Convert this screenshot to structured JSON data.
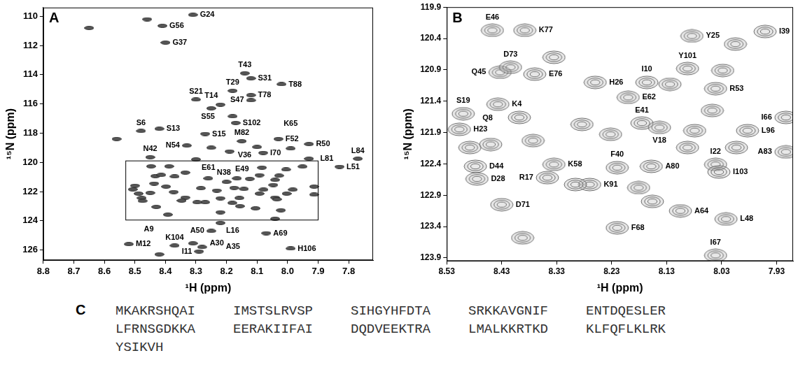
{
  "chart_data": [
    {
      "type": "scatter",
      "panel": "A",
      "x_label": "¹H (ppm)",
      "y_label": "¹⁵N (ppm)",
      "xlim": [
        8.8,
        7.72
      ],
      "ylim": [
        126.7,
        109.4
      ],
      "xticks": [
        8.8,
        8.7,
        8.6,
        8.5,
        8.4,
        8.3,
        8.2,
        8.1,
        {
          "value": 8,
          "label": "8.0"
        },
        7.9,
        7.8
      ],
      "yticks": [
        110,
        112,
        114,
        116,
        118,
        120,
        122,
        124,
        126
      ],
      "grid": false,
      "marker": "ellipse",
      "color": "#555555",
      "x": [
        8.31,
        8.65,
        8.46,
        8.41,
        8.4,
        8.14,
        8.12,
        8.02,
        8.18,
        8.12,
        8.12,
        8.3,
        8.22,
        8.25,
        8.18,
        8.17,
        8.56,
        8.48,
        8.42,
        8.27,
        8.33,
        8.25,
        8.15,
        8.1,
        8.03,
        8.19,
        8.08,
        7.99,
        7.93,
        7.77,
        7.93,
        7.83,
        8.45,
        8.3,
        8.22,
        8.25,
        8.07,
        7.99,
        8.52,
        8.37,
        8.31,
        8.28,
        8.29,
        8.42,
        8.447,
        8.388,
        8.084,
        7.951,
        8.433,
        8.414,
        8.37,
        8.092,
        8.166,
        8.26,
        8.2,
        8.041,
        8.437,
        8.5,
        8.507,
        7.983,
        7.913,
        8.175,
        8.143,
        8.488,
        8.335,
        8.158,
        8.041,
        8.035,
        8.22,
        8.478,
        8.475,
        8.347,
        8.27,
        7.913,
        8.43,
        8.105,
        8.022,
        8.22,
        8.041,
        8.335,
        8.028,
        8.005,
        8.284,
        8.398,
        8.232,
        8.079,
        8.296,
        8.181,
        8.45,
        8.092,
        8.003,
        8.156,
        8.392,
        8.124,
        8.047,
        8.373
      ],
      "values": [
        109.9,
        110.8,
        110.2,
        110.65,
        111.8,
        113.9,
        114.25,
        114.65,
        115.1,
        115.4,
        115.75,
        115.7,
        116.05,
        116.3,
        116.85,
        117.3,
        118.4,
        117.85,
        117.7,
        118.05,
        118.85,
        119,
        118.55,
        118.95,
        118.4,
        119.25,
        119.35,
        119.05,
        118.75,
        119.75,
        119.75,
        120.3,
        119.65,
        119.8,
        124.15,
        124.7,
        124.85,
        125.9,
        125.6,
        125.7,
        125.55,
        125.8,
        126.1,
        126.3,
        120.27,
        120.27,
        120.36,
        120.29,
        120.94,
        120.86,
        120.97,
        120.88,
        121.1,
        121.1,
        121.34,
        121.2,
        121.45,
        121.6,
        121.85,
        121.87,
        121.66,
        121.75,
        121.82,
        122.14,
        122.41,
        122.44,
        122.41,
        122.53,
        122.46,
        122.44,
        122.64,
        122.62,
        122.73,
        122.21,
        123.05,
        123.15,
        123.28,
        123.42,
        123.86,
        120.7,
        120.91,
        120.49,
        121.77,
        121.66,
        121.93,
        121.87,
        122.73,
        122.78,
        122.09,
        122.14,
        122.14,
        123,
        123.58,
        121.13,
        121.55,
        122.03
      ],
      "point_labels": [
        "G24",
        null,
        null,
        "G56",
        "G37",
        "T43",
        "S31",
        "T88",
        "T29",
        "T78",
        "S47",
        "S21",
        "S55",
        "T14",
        null,
        "S102",
        null,
        "S6",
        "S13",
        "S15",
        "N54",
        "N38",
        "M82",
        "V36",
        "F52",
        "E49",
        "I70",
        "K65",
        "R50",
        "L84",
        "L81",
        "L51",
        "N42",
        "E61",
        "L16",
        "A50",
        "A69",
        "H106",
        "M12",
        "K104",
        "A30",
        "A35",
        "I11",
        "A9",
        null,
        null,
        null,
        null,
        null,
        null,
        null,
        null,
        null,
        null,
        null,
        null,
        null,
        null,
        null,
        null,
        null,
        null,
        null,
        null,
        null,
        null,
        null,
        null,
        null,
        null,
        null,
        null,
        null,
        null,
        null,
        null,
        null,
        null,
        null,
        null,
        null,
        null,
        null,
        null,
        null,
        null,
        null,
        null,
        null,
        null,
        null,
        null,
        null,
        null,
        null,
        null
      ]
    },
    {
      "type": "scatter",
      "panel": "B",
      "x_label": "¹H (ppm)",
      "y_label": "¹⁵N (ppm)",
      "xlim": [
        8.53,
        7.9
      ],
      "ylim": [
        123.95,
        119.9
      ],
      "xticks": [
        8.53,
        8.43,
        8.33,
        8.23,
        8.13,
        8.03,
        7.93
      ],
      "yticks": [
        119.9,
        120.4,
        120.9,
        121.4,
        121.9,
        122.4,
        122.9,
        123.4,
        123.9
      ],
      "grid": false,
      "marker": "contour",
      "color": "#6a6a6a",
      "x": [
        8.447,
        8.388,
        8.084,
        7.951,
        8.433,
        8.414,
        8.37,
        8.092,
        8.166,
        8.26,
        8.2,
        8.041,
        8.437,
        8.5,
        8.507,
        7.983,
        7.913,
        8.175,
        8.143,
        8.488,
        8.335,
        8.158,
        8.041,
        8.035,
        8.22,
        8.478,
        8.475,
        8.347,
        8.27,
        7.913,
        8.43,
        8.105,
        8.022,
        8.22,
        8.041,
        8.335,
        8.028,
        8.005,
        8.284,
        8.398,
        8.232,
        8.079,
        8.296,
        8.181,
        8.45,
        8.092,
        8.003,
        8.156,
        8.392,
        8.124,
        8.047,
        8.373
      ],
      "values": [
        120.27,
        120.27,
        120.36,
        120.29,
        120.94,
        120.86,
        120.97,
        120.88,
        121.1,
        121.1,
        121.34,
        121.2,
        121.45,
        121.6,
        121.85,
        121.87,
        121.66,
        121.75,
        121.82,
        122.14,
        122.41,
        122.44,
        122.41,
        122.53,
        122.46,
        122.44,
        122.64,
        122.62,
        122.73,
        122.21,
        123.05,
        123.15,
        123.28,
        123.42,
        123.86,
        120.7,
        120.91,
        120.49,
        121.77,
        121.66,
        121.93,
        121.87,
        122.73,
        122.78,
        122.09,
        122.14,
        122.14,
        123,
        123.58,
        121.13,
        121.55,
        122.03
      ],
      "point_labels": [
        "E46",
        "K77",
        "Y25",
        "I39",
        "Q45",
        "D73",
        "E76",
        "Y101",
        "I10",
        "H26",
        "E62",
        "R53",
        "K4",
        "S19",
        "H23",
        "L96",
        "I66",
        "E41",
        "V18",
        "Q8",
        "K58",
        "A80",
        "I22",
        "I103",
        "F40",
        "D44",
        "D28",
        "R17",
        "K91",
        "A83",
        "D71",
        "A64",
        "L48",
        "F68",
        "I67",
        null,
        null,
        null,
        null,
        null,
        null,
        null,
        null,
        null,
        null,
        null,
        null,
        null,
        null,
        null,
        null,
        null
      ]
    }
  ],
  "sequence_panel": {
    "panel": "C",
    "blocks": [
      "MKAKRSHQAI",
      "IMSTSLRVSP",
      "SIHGYHFDTA",
      "SRKKAVGNIF",
      "ENTDQESLER",
      "LFRNSGDKKA",
      "EERAKIIFAI",
      "DQDVEEKTRA",
      "LMALKKRTKD",
      "KLFQFLKLRK",
      "YSIKVH"
    ]
  }
}
